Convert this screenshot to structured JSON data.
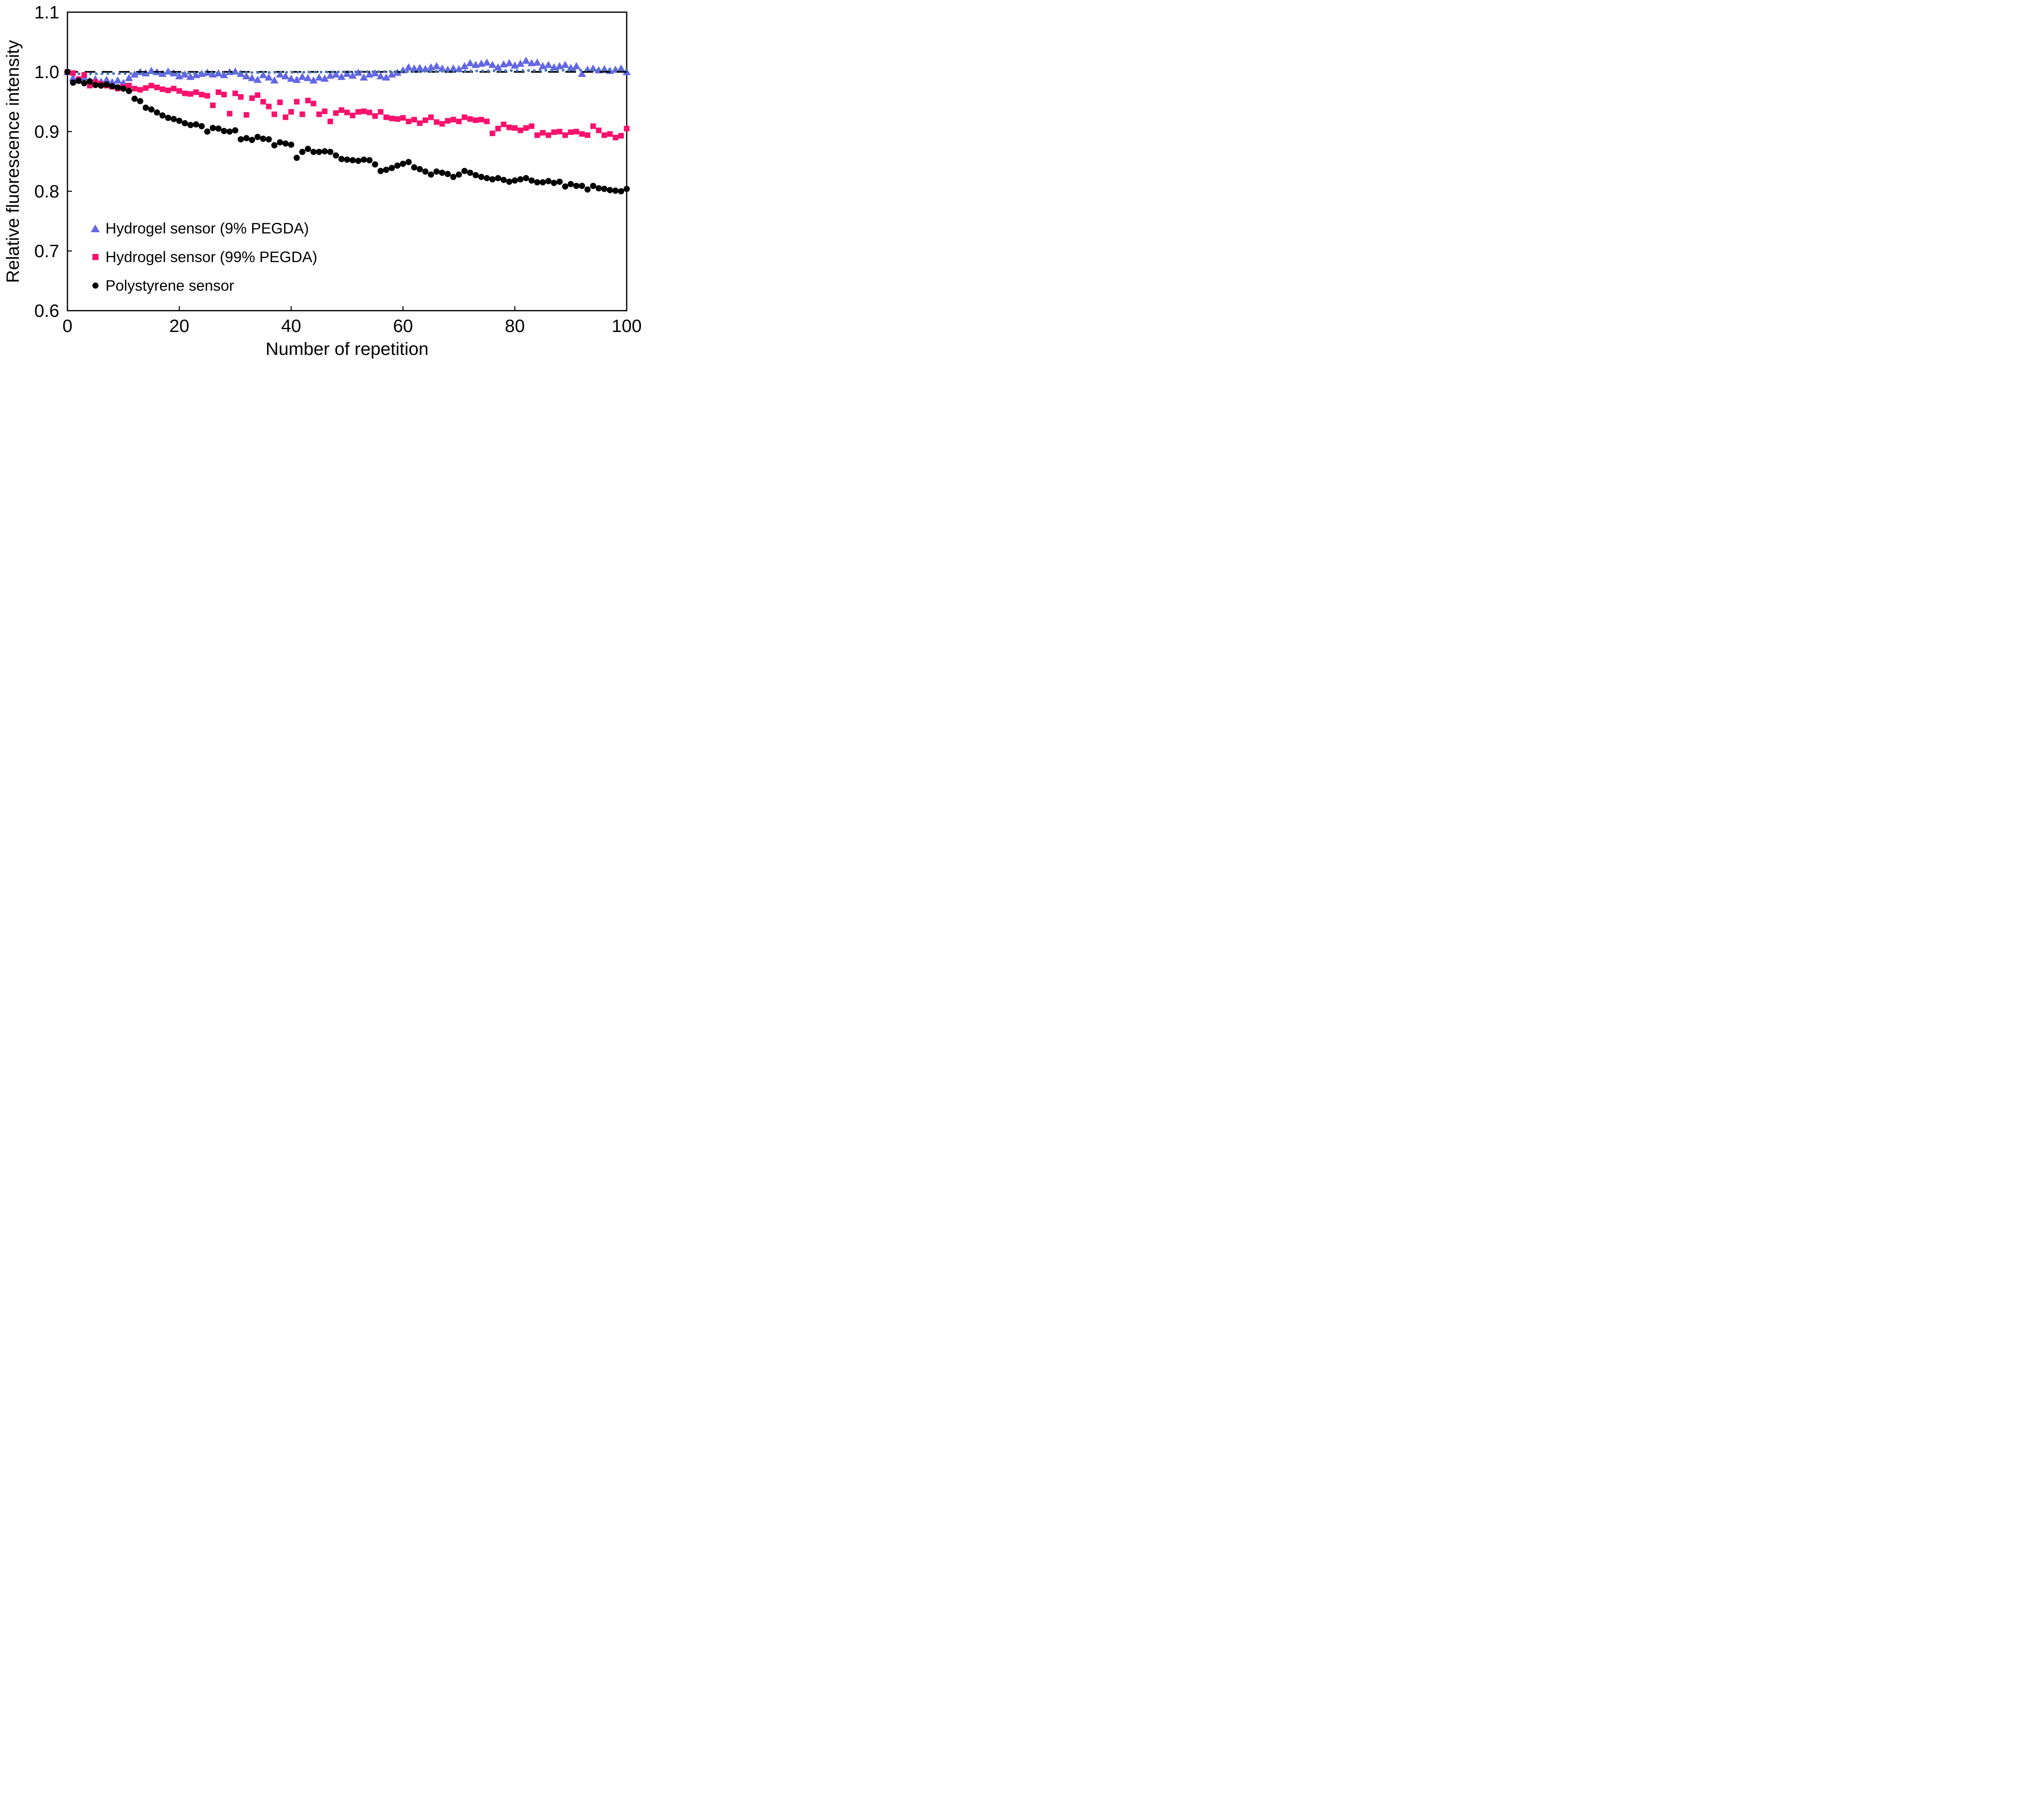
{
  "figure": {
    "background_color": "#ffffff",
    "frame_color": "#000000"
  },
  "chart_data": {
    "type": "scatter",
    "title": "",
    "xlabel": "Number of repetition",
    "ylabel": "Relative fluorescence intensity",
    "xlim": [
      0,
      100
    ],
    "ylim": [
      0.6,
      1.1
    ],
    "grid": false,
    "legend_position": "inside lower-left",
    "x_ticks": [
      0,
      20,
      40,
      60,
      80,
      100
    ],
    "x_tick_labels": [
      "0",
      "20",
      "40",
      "60",
      "80",
      "100"
    ],
    "y_ticks": [
      0.6,
      0.7,
      0.8,
      0.9,
      1.0,
      1.1
    ],
    "y_tick_labels": [
      "0.6",
      "0.7",
      "0.8",
      "0.9",
      "1.0",
      "1.1"
    ],
    "reference_lines": [
      {
        "name": "unity-reference",
        "style": "dashed",
        "color": "#000000",
        "y_start": 1.0,
        "y_end": 1.0
      },
      {
        "name": "hydrogel-9-trend",
        "style": "dotted",
        "color": "#4d79b8",
        "y_start": 0.9965,
        "y_end": 1.0035
      }
    ],
    "x": [
      0,
      1,
      2,
      3,
      4,
      5,
      6,
      7,
      8,
      9,
      10,
      11,
      12,
      13,
      14,
      15,
      16,
      17,
      18,
      19,
      20,
      21,
      22,
      23,
      24,
      25,
      26,
      27,
      28,
      29,
      30,
      31,
      32,
      33,
      34,
      35,
      36,
      37,
      38,
      39,
      40,
      41,
      42,
      43,
      44,
      45,
      46,
      47,
      48,
      49,
      50,
      51,
      52,
      53,
      54,
      55,
      56,
      57,
      58,
      59,
      60,
      61,
      62,
      63,
      64,
      65,
      66,
      67,
      68,
      69,
      70,
      71,
      72,
      73,
      74,
      75,
      76,
      77,
      78,
      79,
      80,
      81,
      82,
      83,
      84,
      85,
      86,
      87,
      88,
      89,
      90,
      91,
      92,
      93,
      94,
      95,
      96,
      97,
      98,
      99,
      100
    ],
    "series": [
      {
        "name": "Hydrogel sensor (9% PEGDA)",
        "marker": "triangle",
        "color": "#6467e4",
        "values": [
          1.0,
          0.99,
          0.986,
          0.991,
          0.985,
          0.988,
          0.984,
          0.987,
          0.983,
          0.986,
          0.982,
          0.99,
          0.996,
          1.0,
          0.998,
          1.002,
          1.0,
          0.997,
          1.001,
          0.998,
          0.993,
          0.996,
          0.992,
          0.995,
          0.997,
          0.999,
          0.996,
          0.998,
          0.995,
          1.0,
          1.001,
          0.997,
          0.993,
          0.99,
          0.987,
          0.995,
          0.991,
          0.986,
          0.996,
          0.993,
          0.989,
          0.987,
          0.992,
          0.99,
          0.986,
          0.991,
          0.989,
          0.994,
          0.996,
          0.992,
          0.997,
          0.994,
          0.999,
          0.991,
          0.996,
          0.998,
          0.993,
          0.991,
          0.996,
          0.999,
          1.003,
          1.008,
          1.006,
          1.007,
          1.005,
          1.008,
          1.01,
          1.006,
          1.004,
          1.006,
          1.005,
          1.01,
          1.015,
          1.012,
          1.014,
          1.016,
          1.012,
          1.008,
          1.013,
          1.015,
          1.011,
          1.014,
          1.019,
          1.015,
          1.016,
          1.01,
          1.012,
          1.008,
          1.01,
          1.012,
          1.007,
          1.01,
          0.997,
          1.004,
          1.006,
          1.003,
          1.005,
          1.002,
          1.004,
          1.006,
          1.0
        ]
      },
      {
        "name": "Hydrogel sensor (99% PEGDA)",
        "marker": "square",
        "color": "#f8116d",
        "values": [
          1.0,
          0.998,
          0.988,
          0.995,
          0.977,
          0.983,
          0.98,
          0.977,
          0.975,
          0.972,
          0.975,
          0.977,
          0.972,
          0.97,
          0.973,
          0.977,
          0.974,
          0.971,
          0.969,
          0.972,
          0.968,
          0.964,
          0.963,
          0.966,
          0.962,
          0.96,
          0.944,
          0.966,
          0.962,
          0.93,
          0.964,
          0.958,
          0.928,
          0.956,
          0.961,
          0.95,
          0.942,
          0.929,
          0.949,
          0.924,
          0.933,
          0.95,
          0.929,
          0.952,
          0.947,
          0.929,
          0.934,
          0.917,
          0.931,
          0.936,
          0.932,
          0.927,
          0.933,
          0.934,
          0.932,
          0.926,
          0.933,
          0.924,
          0.922,
          0.921,
          0.923,
          0.917,
          0.92,
          0.914,
          0.919,
          0.924,
          0.916,
          0.913,
          0.918,
          0.92,
          0.917,
          0.924,
          0.921,
          0.919,
          0.92,
          0.917,
          0.897,
          0.905,
          0.912,
          0.907,
          0.906,
          0.902,
          0.906,
          0.909,
          0.894,
          0.898,
          0.894,
          0.899,
          0.9,
          0.894,
          0.899,
          0.9,
          0.896,
          0.894,
          0.909,
          0.902,
          0.894,
          0.896,
          0.89,
          0.893,
          0.905
        ]
      },
      {
        "name": "Polystyrene sensor",
        "marker": "circle",
        "color": "#000000",
        "values": [
          1.0,
          0.982,
          0.985,
          0.981,
          0.984,
          0.978,
          0.977,
          0.979,
          0.976,
          0.974,
          0.972,
          0.968,
          0.955,
          0.951,
          0.94,
          0.937,
          0.932,
          0.927,
          0.923,
          0.921,
          0.918,
          0.914,
          0.911,
          0.912,
          0.909,
          0.9,
          0.906,
          0.905,
          0.901,
          0.9,
          0.902,
          0.887,
          0.889,
          0.886,
          0.891,
          0.888,
          0.887,
          0.877,
          0.882,
          0.88,
          0.878,
          0.856,
          0.866,
          0.871,
          0.866,
          0.866,
          0.867,
          0.866,
          0.86,
          0.854,
          0.853,
          0.852,
          0.851,
          0.853,
          0.852,
          0.845,
          0.834,
          0.836,
          0.839,
          0.843,
          0.846,
          0.849,
          0.84,
          0.837,
          0.833,
          0.828,
          0.833,
          0.831,
          0.829,
          0.824,
          0.828,
          0.834,
          0.831,
          0.827,
          0.824,
          0.822,
          0.82,
          0.822,
          0.819,
          0.816,
          0.818,
          0.82,
          0.822,
          0.818,
          0.815,
          0.815,
          0.817,
          0.814,
          0.816,
          0.808,
          0.812,
          0.809,
          0.809,
          0.803,
          0.809,
          0.805,
          0.804,
          0.802,
          0.801,
          0.8,
          0.804
        ]
      }
    ]
  }
}
